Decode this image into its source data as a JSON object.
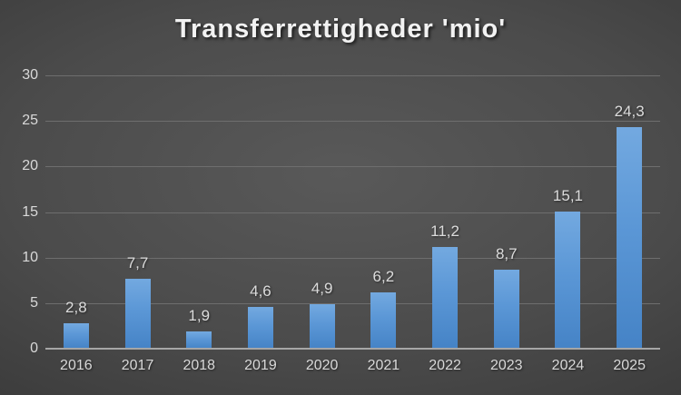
{
  "title": "Transferrettigheder 'mio'",
  "colors": {
    "background_center": "#595959",
    "background_edge": "#262626",
    "bar_gradient_top": "#73a9e0",
    "bar_gradient_bottom": "#4583c6",
    "gridline": "#6e6e6e",
    "axis_line": "#a6a6a6",
    "tick_label": "#d9d9d9",
    "value_label": "#dcdcdc",
    "title_color": "#f2f2f2"
  },
  "chart_data": {
    "type": "bar",
    "title": "Transferrettigheder 'mio'",
    "categories": [
      "2016",
      "2017",
      "2018",
      "2019",
      "2020",
      "2021",
      "2022",
      "2023",
      "2024",
      "2025"
    ],
    "values": [
      2.8,
      7.7,
      1.9,
      4.6,
      4.9,
      6.2,
      11.2,
      8.7,
      15.1,
      24.3
    ],
    "value_labels": [
      "2,8",
      "7,7",
      "1,9",
      "4,6",
      "4,9",
      "6,2",
      "11,2",
      "8,7",
      "15,1",
      "24,3"
    ],
    "xlabel": "",
    "ylabel": "",
    "ylim": [
      0,
      30
    ],
    "yticks": [
      0,
      5,
      10,
      15,
      20,
      25,
      30
    ],
    "grid": true,
    "legend": false,
    "decimal_separator": ","
  }
}
